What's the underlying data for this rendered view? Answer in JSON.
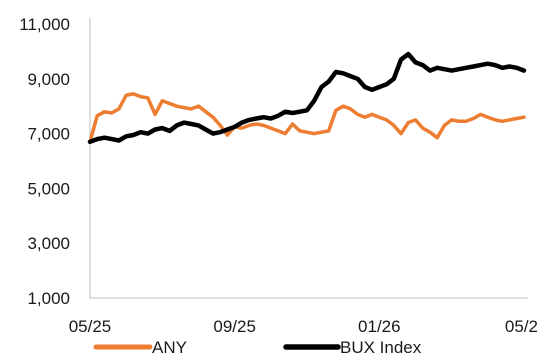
{
  "chart_data": {
    "type": "line",
    "title": "",
    "xlabel": "",
    "ylabel": "",
    "ylim": [
      1000,
      11000
    ],
    "yticks": [
      1000,
      3000,
      5000,
      7000,
      9000,
      11000
    ],
    "ytick_labels": [
      "1,000",
      "3,000",
      "5,000",
      "7,000",
      "9,000",
      "11,000"
    ],
    "xlim": [
      0,
      12
    ],
    "xticks": [
      0,
      4,
      8,
      12
    ],
    "xtick_labels": [
      "05/25",
      "09/25",
      "01/26",
      "05/2"
    ],
    "grid": false,
    "legend_position": "bottom",
    "x": [
      0,
      0.2,
      0.4,
      0.6,
      0.8,
      1.0,
      1.2,
      1.4,
      1.6,
      1.8,
      2.0,
      2.2,
      2.4,
      2.6,
      2.8,
      3.0,
      3.2,
      3.4,
      3.6,
      3.8,
      4.0,
      4.2,
      4.4,
      4.6,
      4.8,
      5.0,
      5.2,
      5.4,
      5.6,
      5.8,
      6.0,
      6.2,
      6.4,
      6.6,
      6.8,
      7.0,
      7.2,
      7.4,
      7.6,
      7.8,
      8.0,
      8.2,
      8.4,
      8.6,
      8.8,
      9.0,
      9.2,
      9.4,
      9.6,
      9.8,
      10.0,
      10.2,
      10.4,
      10.6,
      10.8,
      11.0,
      11.2,
      11.4,
      11.6,
      11.8,
      12.0
    ],
    "series": [
      {
        "name": "ANY",
        "color": "#ed7d31",
        "values": [
          6700,
          7650,
          7800,
          7750,
          7900,
          8400,
          8450,
          8350,
          8300,
          7700,
          8200,
          8100,
          8000,
          7950,
          7900,
          8000,
          7800,
          7600,
          7300,
          6950,
          7250,
          7200,
          7300,
          7350,
          7300,
          7200,
          7100,
          7000,
          7350,
          7100,
          7050,
          7000,
          7050,
          7100,
          7850,
          8000,
          7900,
          7700,
          7600,
          7700,
          7600,
          7500,
          7300,
          7000,
          7400,
          7500,
          7200,
          7050,
          6850,
          7300,
          7500,
          7450,
          7450,
          7550,
          7700,
          7600,
          7500,
          7450,
          7500,
          7550,
          7600
        ]
      },
      {
        "name": "BUX Index",
        "color": "#000000",
        "values": [
          6700,
          6800,
          6850,
          6800,
          6750,
          6900,
          6950,
          7050,
          7000,
          7150,
          7200,
          7100,
          7300,
          7400,
          7350,
          7300,
          7150,
          7000,
          7050,
          7150,
          7250,
          7400,
          7500,
          7550,
          7600,
          7550,
          7650,
          7800,
          7750,
          7800,
          7850,
          8200,
          8700,
          8900,
          9250,
          9200,
          9100,
          9000,
          8700,
          8600,
          8700,
          8800,
          9000,
          9700,
          9900,
          9600,
          9500,
          9300,
          9400,
          9350,
          9300,
          9350,
          9400,
          9450,
          9500,
          9550,
          9500,
          9400,
          9450,
          9400,
          9300
        ]
      }
    ]
  }
}
